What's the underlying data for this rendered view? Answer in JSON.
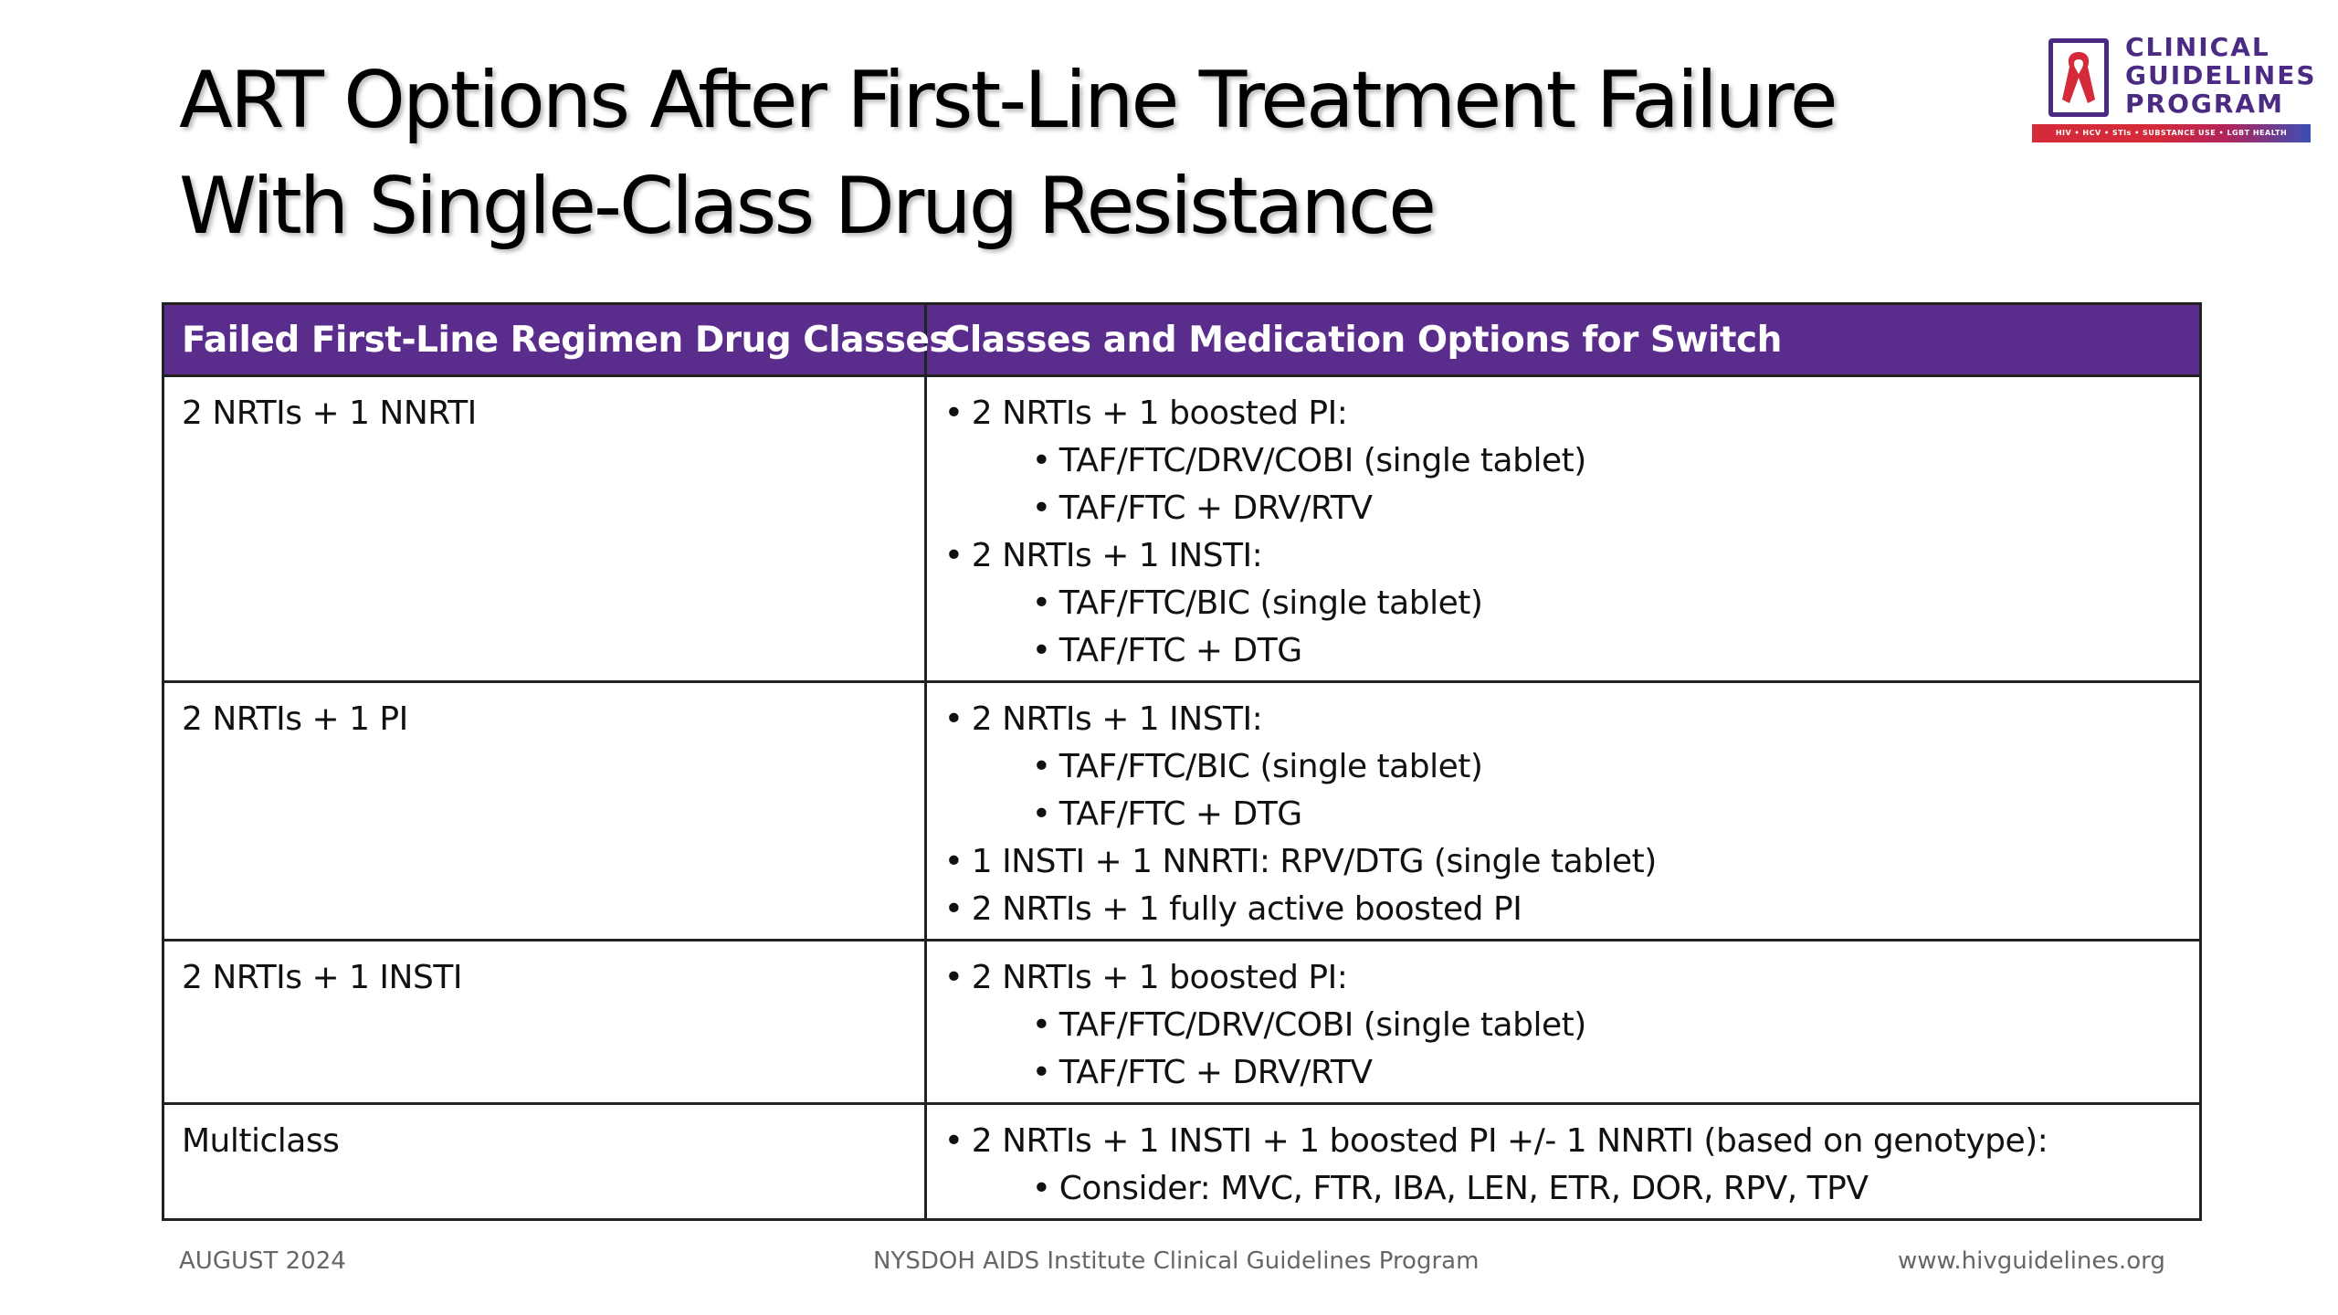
{
  "slide": {
    "title_line1": "ART Options After First-Line Treatment Failure",
    "title_line2": "With Single-Class Drug Resistance"
  },
  "logo": {
    "line1": "CLINICAL",
    "line2": "GUIDELINES",
    "line3": "PROGRAM",
    "tagline": "HIV • HCV • STIs • SUBSTANCE USE • LGBT HEALTH",
    "icon": "red-ribbon-icon",
    "colors": {
      "text": "#4b2a83",
      "ribbon": "#d42a3a"
    }
  },
  "table": {
    "headers": [
      "Failed First-Line Regimen Drug Classes",
      "Classes and Medication Options for Switch"
    ],
    "header_color": "#5a2d8c",
    "rows": [
      {
        "regimen": "2 NRTIs + 1 NNRTI",
        "options": [
          {
            "text": "2 NRTIs + 1 boosted PI:",
            "level": 1
          },
          {
            "text": "TAF/FTC/DRV/COBI (single tablet)",
            "level": 2
          },
          {
            "text": "TAF/FTC + DRV/RTV",
            "level": 2
          },
          {
            "text": "2 NRTIs + 1 INSTI:",
            "level": 1
          },
          {
            "text": "TAF/FTC/BIC (single tablet)",
            "level": 2
          },
          {
            "text": "TAF/FTC + DTG",
            "level": 2
          }
        ]
      },
      {
        "regimen": "2 NRTIs + 1 PI",
        "options": [
          {
            "text": "2 NRTIs + 1 INSTI:",
            "level": 1
          },
          {
            "text": "TAF/FTC/BIC (single tablet)",
            "level": 2
          },
          {
            "text": "TAF/FTC + DTG",
            "level": 2
          },
          {
            "text": "1 INSTI + 1 NNRTI: RPV/DTG (single tablet)",
            "level": 1
          },
          {
            "text": "2 NRTIs + 1 fully active boosted PI",
            "level": 1
          }
        ]
      },
      {
        "regimen": "2 NRTIs + 1 INSTI",
        "options": [
          {
            "text": "2 NRTIs + 1 boosted PI:",
            "level": 1
          },
          {
            "text": "TAF/FTC/DRV/COBI (single tablet)",
            "level": 2
          },
          {
            "text": "TAF/FTC + DRV/RTV",
            "level": 2
          }
        ]
      },
      {
        "regimen": "Multiclass",
        "options": [
          {
            "text": "2 NRTIs + 1 INSTI + 1 boosted PI +/- 1 NNRTI (based on genotype):",
            "level": 1
          },
          {
            "text": "Consider: MVC, FTR, IBA, LEN, ETR, DOR, RPV, TPV",
            "level": 2
          }
        ]
      }
    ]
  },
  "footer": {
    "date": "AUGUST 2024",
    "program": "NYSDOH AIDS Institute Clinical Guidelines Program",
    "website": "www.hivguidelines.org"
  }
}
